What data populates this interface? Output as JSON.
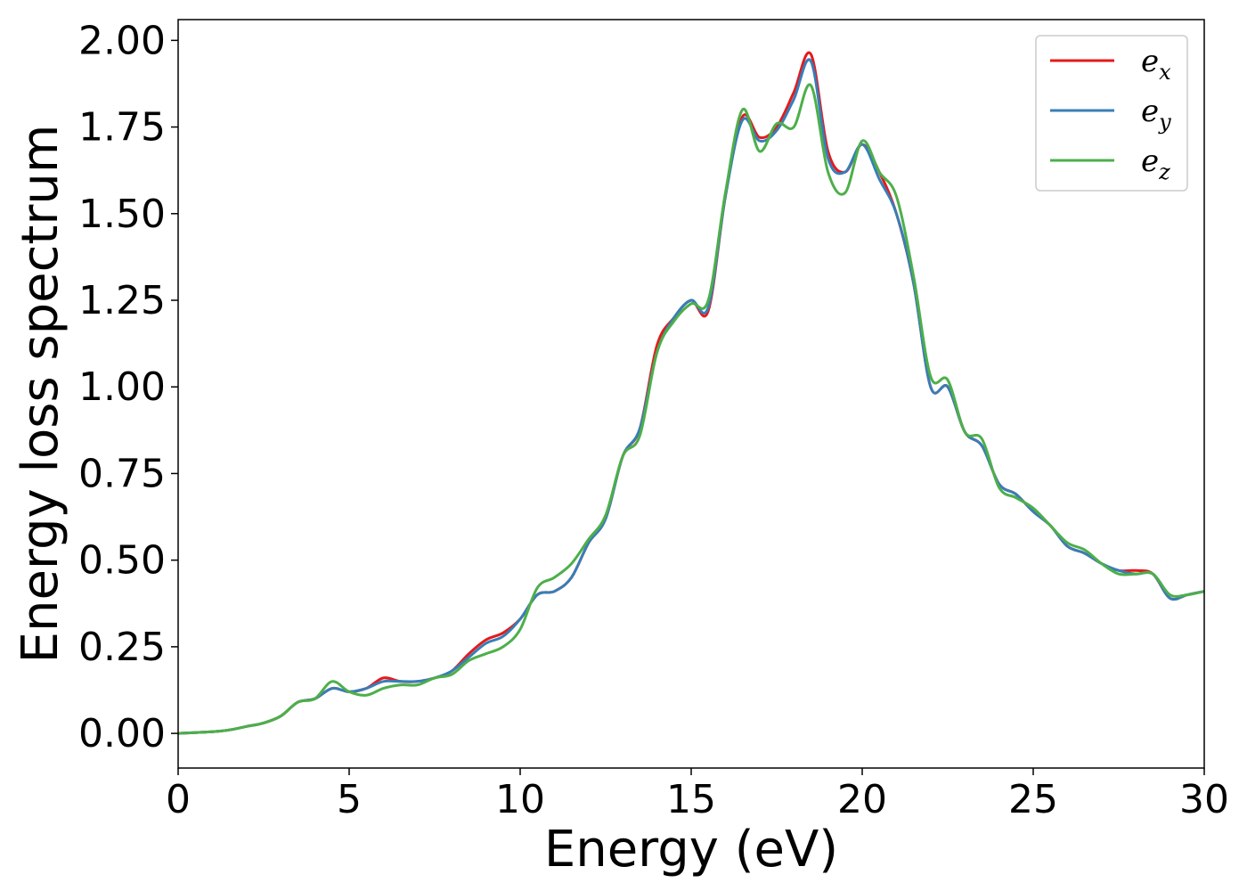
{
  "chart_data": {
    "type": "line",
    "xlabel": "Energy (eV)",
    "ylabel": "Energy loss spectrum",
    "xlim": [
      0,
      30
    ],
    "ylim": [
      -0.1,
      2.06
    ],
    "xticks": [
      0,
      5,
      10,
      15,
      20,
      25,
      30
    ],
    "yticks": [
      0.0,
      0.25,
      0.5,
      0.75,
      1.0,
      1.25,
      1.5,
      1.75,
      2.0
    ],
    "xtick_labels": [
      "0",
      "5",
      "10",
      "15",
      "20",
      "25",
      "30"
    ],
    "ytick_labels": [
      "0.00",
      "0.25",
      "0.50",
      "0.75",
      "1.00",
      "1.25",
      "1.50",
      "1.75",
      "2.00"
    ],
    "grid": false,
    "legend_position": "top-right",
    "series": [
      {
        "name": "e_x",
        "label_base": "e",
        "label_sub": "x",
        "color": "#e41a1c",
        "x": [
          0,
          1,
          1.5,
          2,
          2.5,
          3,
          3.5,
          4,
          4.5,
          5,
          5.5,
          6,
          6.5,
          7,
          7.5,
          8,
          8.5,
          9,
          9.5,
          10,
          10.5,
          11,
          11.5,
          12,
          12.5,
          13,
          13.5,
          14,
          14.5,
          15,
          15.5,
          16,
          16.5,
          17,
          17.5,
          18,
          18.5,
          19,
          19.5,
          20,
          20.5,
          21,
          21.5,
          22,
          22.5,
          23,
          23.5,
          24,
          24.5,
          25,
          25.5,
          26,
          26.5,
          27,
          27.5,
          28,
          28.5,
          29,
          29.5,
          30
        ],
        "y": [
          0,
          0.005,
          0.01,
          0.02,
          0.03,
          0.05,
          0.09,
          0.1,
          0.13,
          0.12,
          0.13,
          0.16,
          0.15,
          0.15,
          0.16,
          0.18,
          0.23,
          0.27,
          0.29,
          0.33,
          0.4,
          0.41,
          0.45,
          0.55,
          0.62,
          0.8,
          0.88,
          1.12,
          1.2,
          1.25,
          1.22,
          1.55,
          1.78,
          1.72,
          1.75,
          1.85,
          1.96,
          1.68,
          1.62,
          1.7,
          1.62,
          1.5,
          1.3,
          1.0,
          1.0,
          0.87,
          0.83,
          0.72,
          0.69,
          0.64,
          0.6,
          0.54,
          0.52,
          0.49,
          0.47,
          0.47,
          0.46,
          0.39,
          0.4,
          0.41
        ]
      },
      {
        "name": "e_y",
        "label_base": "e",
        "label_sub": "y",
        "color": "#377eb8",
        "x": [
          0,
          1,
          1.5,
          2,
          2.5,
          3,
          3.5,
          4,
          4.5,
          5,
          5.5,
          6,
          6.5,
          7,
          7.5,
          8,
          8.5,
          9,
          9.5,
          10,
          10.5,
          11,
          11.5,
          12,
          12.5,
          13,
          13.5,
          14,
          14.5,
          15,
          15.5,
          16,
          16.5,
          17,
          17.5,
          18,
          18.5,
          19,
          19.5,
          20,
          20.5,
          21,
          21.5,
          22,
          22.5,
          23,
          23.5,
          24,
          24.5,
          25,
          25.5,
          26,
          26.5,
          27,
          27.5,
          28,
          28.5,
          29,
          29.5,
          30
        ],
        "y": [
          0,
          0.005,
          0.01,
          0.02,
          0.03,
          0.05,
          0.09,
          0.1,
          0.13,
          0.12,
          0.13,
          0.15,
          0.15,
          0.15,
          0.16,
          0.18,
          0.22,
          0.26,
          0.28,
          0.33,
          0.4,
          0.41,
          0.45,
          0.55,
          0.62,
          0.8,
          0.88,
          1.1,
          1.2,
          1.25,
          1.23,
          1.55,
          1.77,
          1.71,
          1.74,
          1.83,
          1.94,
          1.66,
          1.62,
          1.7,
          1.6,
          1.5,
          1.3,
          1.0,
          1.0,
          0.87,
          0.83,
          0.72,
          0.69,
          0.64,
          0.6,
          0.54,
          0.52,
          0.49,
          0.47,
          0.46,
          0.46,
          0.39,
          0.4,
          0.41
        ]
      },
      {
        "name": "e_z",
        "label_base": "e",
        "label_sub": "z",
        "color": "#4daf4a",
        "x": [
          0,
          1,
          1.5,
          2,
          2.5,
          3,
          3.5,
          4,
          4.5,
          5,
          5.5,
          6,
          6.5,
          7,
          7.5,
          8,
          8.5,
          9,
          9.5,
          10,
          10.5,
          11,
          11.5,
          12,
          12.5,
          13,
          13.5,
          14,
          14.5,
          15,
          15.5,
          16,
          16.5,
          17,
          17.5,
          18,
          18.5,
          19,
          19.5,
          20,
          20.5,
          21,
          21.5,
          22,
          22.5,
          23,
          23.5,
          24,
          24.5,
          25,
          25.5,
          26,
          26.5,
          27,
          27.5,
          28,
          28.5,
          29,
          29.5,
          30
        ],
        "y": [
          0,
          0.005,
          0.01,
          0.02,
          0.03,
          0.05,
          0.09,
          0.1,
          0.15,
          0.12,
          0.11,
          0.13,
          0.14,
          0.14,
          0.16,
          0.17,
          0.21,
          0.23,
          0.25,
          0.3,
          0.42,
          0.45,
          0.49,
          0.56,
          0.63,
          0.8,
          0.86,
          1.1,
          1.19,
          1.24,
          1.25,
          1.56,
          1.8,
          1.68,
          1.76,
          1.75,
          1.87,
          1.62,
          1.56,
          1.71,
          1.62,
          1.55,
          1.32,
          1.03,
          1.02,
          0.87,
          0.85,
          0.71,
          0.68,
          0.65,
          0.6,
          0.55,
          0.53,
          0.49,
          0.46,
          0.46,
          0.46,
          0.4,
          0.4,
          0.41
        ]
      }
    ]
  }
}
